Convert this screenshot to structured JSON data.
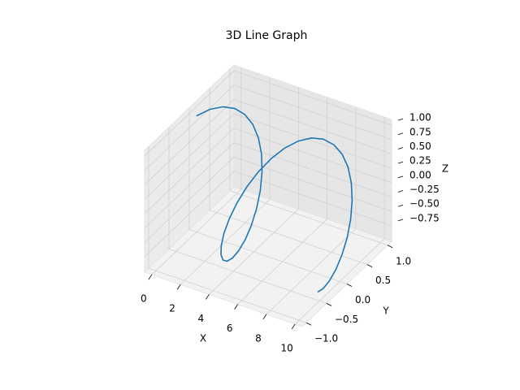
{
  "chart_data": {
    "type": "line3d",
    "title": "3D Line Graph",
    "xlabel": "X",
    "ylabel": "Y",
    "zlabel": "Z",
    "series": [
      {
        "color": "#1f77b4",
        "x": [
          0,
          0.25,
          0.5,
          0.75,
          1,
          1.25,
          1.5,
          1.75,
          2,
          2.25,
          2.5,
          2.75,
          3,
          3.25,
          3.5,
          3.75,
          4,
          4.25,
          4.5,
          4.75,
          5,
          5.25,
          5.5,
          5.75,
          6,
          6.25,
          6.5,
          6.75,
          7,
          7.25,
          7.5,
          7.75,
          8,
          8.25,
          8.5,
          8.75,
          9,
          9.25,
          9.5,
          9.75,
          10
        ],
        "y": [
          0,
          0.247,
          0.479,
          0.682,
          0.841,
          0.949,
          0.997,
          0.984,
          0.909,
          0.778,
          0.598,
          0.382,
          0.141,
          -0.108,
          -0.351,
          -0.572,
          -0.757,
          -0.895,
          -0.978,
          -0.999,
          -0.959,
          -0.859,
          -0.706,
          -0.51,
          -0.279,
          -0.033,
          0.215,
          0.45,
          0.657,
          0.824,
          0.938,
          0.995,
          0.989,
          0.922,
          0.798,
          0.625,
          0.412,
          0.174,
          -0.075,
          -0.319,
          -0.544
        ],
        "z": [
          1,
          0.969,
          0.878,
          0.732,
          0.54,
          0.315,
          0.071,
          -0.178,
          -0.416,
          -0.628,
          -0.801,
          -0.924,
          -0.99,
          -0.994,
          -0.936,
          -0.82,
          -0.654,
          -0.446,
          -0.211,
          0.038,
          0.284,
          0.512,
          0.709,
          0.861,
          0.96,
          0.999,
          0.977,
          0.893,
          0.754,
          0.566,
          0.347,
          0.108,
          -0.146,
          -0.388,
          -0.602,
          -0.781,
          -0.911,
          -0.985,
          -0.997,
          -0.948,
          -0.839
        ]
      }
    ],
    "xlim": [
      -0.5,
      10.5
    ],
    "ylim": [
      -1.1,
      1.1
    ],
    "zlim": [
      -1.02,
      1.1
    ],
    "xticks": [
      0,
      2,
      4,
      6,
      8,
      10
    ],
    "yticks": [
      {
        "value": -1,
        "label": "−1.0"
      },
      {
        "value": -0.5,
        "label": "−0.5"
      },
      {
        "value": 0,
        "label": "0.0"
      },
      0.5,
      {
        "value": 1,
        "label": "1.0"
      }
    ],
    "zticks": [
      {
        "value": -0.75,
        "label": "−0.75"
      },
      {
        "value": -0.5,
        "label": "−0.50"
      },
      {
        "value": -0.25,
        "label": "−0.25"
      },
      {
        "value": 0,
        "label": "0.00"
      },
      0.25,
      {
        "value": 0.5,
        "label": "0.50"
      },
      0.75,
      {
        "value": 1,
        "label": "1.00"
      }
    ],
    "grid": true
  }
}
